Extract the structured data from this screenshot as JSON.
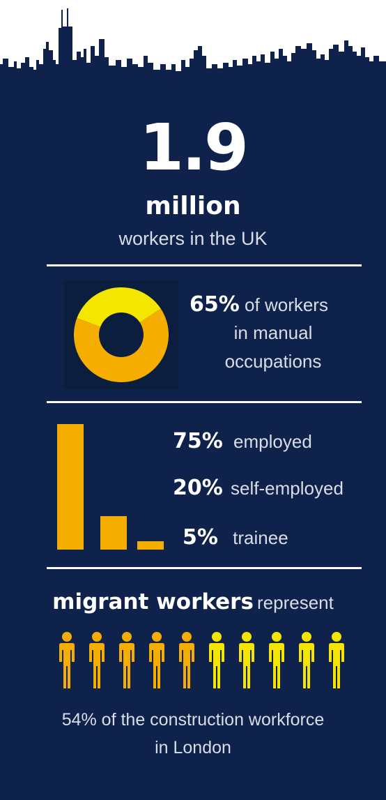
{
  "colors": {
    "navy": "#0f224b",
    "orange": "#f5ad00",
    "yellow": "#f5e600",
    "white": "#ffffff"
  },
  "headline": {
    "value": "1.9",
    "unit": "million",
    "caption": "workers in the UK"
  },
  "manual": {
    "percent_label": "65%",
    "text_line1": "of workers",
    "text_line2": "in manual",
    "text_line3": "occupations"
  },
  "employment": {
    "rows": [
      {
        "percent": "75%",
        "label": "employed"
      },
      {
        "percent": "20%",
        "label": "self-employed"
      },
      {
        "percent": "5%",
        "label": "trainee"
      }
    ]
  },
  "migrant": {
    "title_bold": "migrant workers",
    "title_light": "represent",
    "footer_line1": "54% of the construction workforce",
    "footer_line2": "in London"
  },
  "chart_data": [
    {
      "type": "pie",
      "slices": [
        {
          "name": "manual occupations",
          "value": 65
        },
        {
          "name": "other",
          "value": 35
        }
      ]
    },
    {
      "type": "bar",
      "categories": [
        "employed",
        "self-employed",
        "trainee"
      ],
      "values": [
        75,
        20,
        5
      ]
    },
    {
      "type": "table",
      "total_icons": 10,
      "highlighted_icons": 5
    }
  ]
}
